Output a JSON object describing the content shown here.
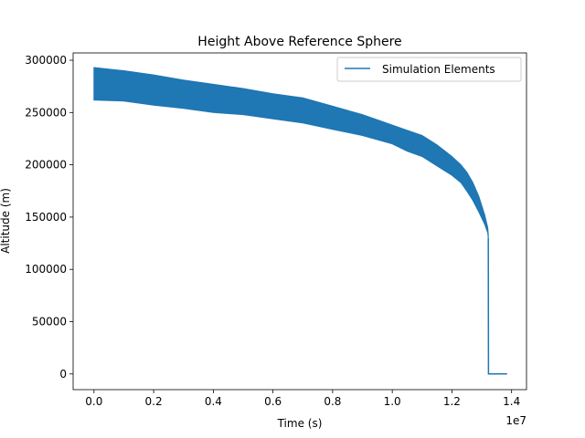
{
  "chart_data": {
    "type": "line",
    "title": "Height Above Reference Sphere",
    "xlabel": "Time (s)",
    "ylabel": "Altitude (m)",
    "x_offset_label": "1e7",
    "xlim": [
      -0.07,
      1.45
    ],
    "ylim": [
      -15000,
      307000
    ],
    "x_ticks": [
      0.0,
      0.2,
      0.4,
      0.6,
      0.8,
      1.0,
      1.2,
      1.4
    ],
    "x_tick_labels": [
      "0.0",
      "0.2",
      "0.4",
      "0.6",
      "0.8",
      "1.0",
      "1.2",
      "1.4"
    ],
    "y_ticks": [
      0,
      50000,
      100000,
      150000,
      200000,
      250000,
      300000
    ],
    "y_tick_labels": [
      "0",
      "50000",
      "100000",
      "150000",
      "200000",
      "250000",
      "300000"
    ],
    "grid": false,
    "legend_position": "top-right",
    "color": "#1f77b4",
    "series": [
      {
        "name": "Simulation Elements",
        "x": [
          0.0,
          0.1,
          0.2,
          0.3,
          0.4,
          0.5,
          0.6,
          0.7,
          0.8,
          0.9,
          1.0,
          1.05,
          1.1,
          1.15,
          1.2,
          1.23,
          1.25,
          1.27,
          1.29,
          1.31,
          1.32,
          1.322
        ],
        "upper": [
          293000,
          290000,
          286000,
          281000,
          277000,
          273000,
          268000,
          264000,
          256000,
          248000,
          238000,
          233000,
          228000,
          219000,
          208000,
          200000,
          193000,
          183000,
          170000,
          152000,
          140000,
          133000
        ],
        "lower": [
          262000,
          261000,
          257000,
          254000,
          250000,
          248000,
          244000,
          240000,
          234000,
          228000,
          220000,
          213000,
          208000,
          199000,
          190000,
          183000,
          175000,
          166000,
          155000,
          143000,
          135000,
          130000
        ]
      }
    ],
    "tail": {
      "x": [
        1.322,
        1.3225,
        1.385
      ],
      "y": [
        130000,
        0,
        0
      ]
    }
  }
}
